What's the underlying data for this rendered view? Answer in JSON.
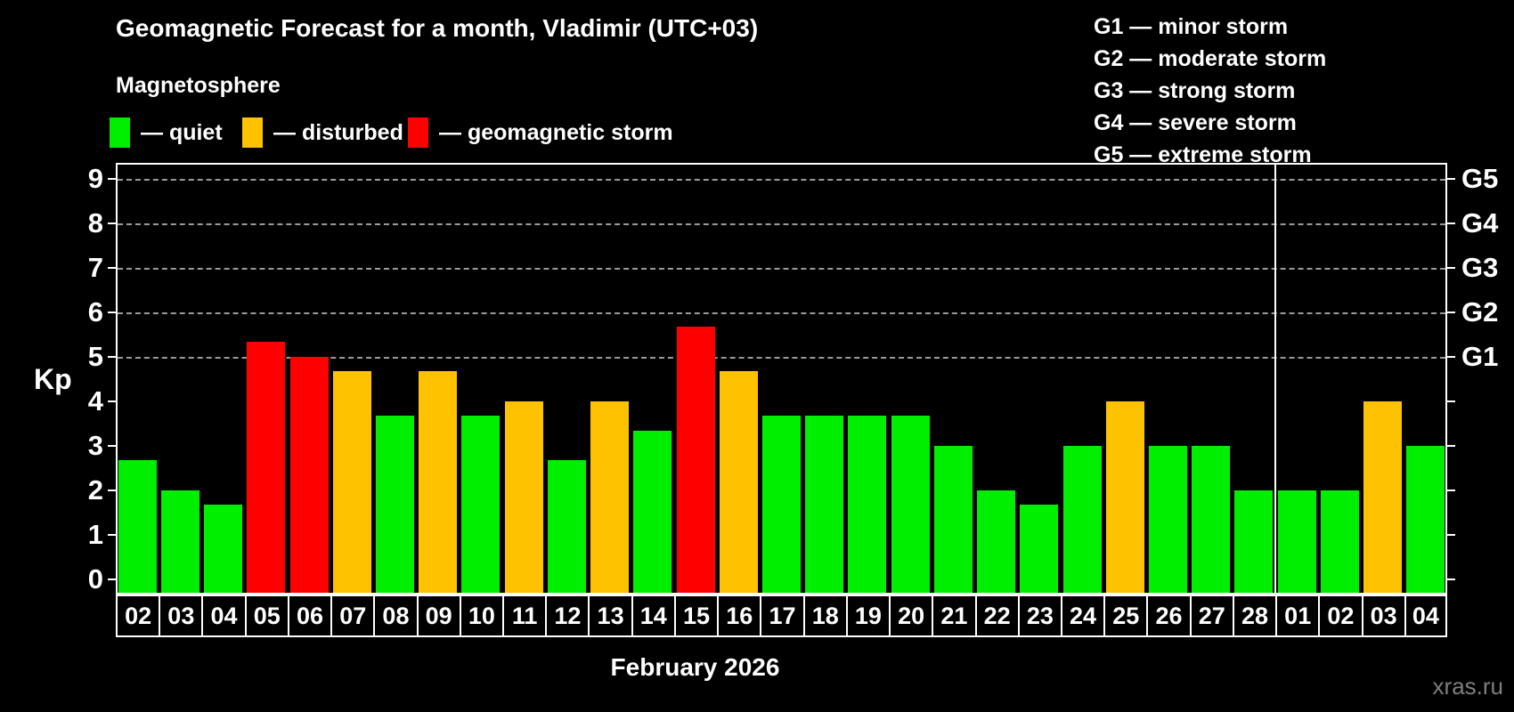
{
  "title": "Geomagnetic Forecast for a month, Vladimir (UTC+03)",
  "subtitle": "Magnetosphere",
  "legend": [
    {
      "state": "quiet",
      "label": "— quiet"
    },
    {
      "state": "disturbed",
      "label": "— disturbed"
    },
    {
      "state": "storm",
      "label": "— geomagnetic storm"
    }
  ],
  "g_levels": [
    {
      "code": "G1",
      "label": "G1 — minor storm"
    },
    {
      "code": "G2",
      "label": "G2 — moderate storm"
    },
    {
      "code": "G3",
      "label": "G3 — strong storm"
    },
    {
      "code": "G4",
      "label": "G4 — severe storm"
    },
    {
      "code": "G5",
      "label": "G5 — extreme storm"
    }
  ],
  "month_label": "February 2026",
  "watermark": "xras.ru",
  "chart_data": {
    "type": "bar",
    "title": "Geomagnetic Forecast for a month, Vladimir (UTC+03)",
    "subtitle": "Magnetosphere",
    "ylabel": "Kp",
    "xlabel": "February 2026",
    "ylim": [
      0,
      9
    ],
    "yticks": [
      0,
      1,
      2,
      3,
      4,
      5,
      6,
      7,
      8,
      9
    ],
    "grid_at_kp": [
      5,
      6,
      7,
      8,
      9
    ],
    "right_axis_labels": [
      {
        "kp": 5,
        "label": "G1"
      },
      {
        "kp": 6,
        "label": "G2"
      },
      {
        "kp": 7,
        "label": "G3"
      },
      {
        "kp": 8,
        "label": "G4"
      },
      {
        "kp": 9,
        "label": "G5"
      }
    ],
    "colors": {
      "quiet": "#00EE00",
      "disturbed": "#FFC200",
      "storm": "#FF0000",
      "grid": "#9A9A9A"
    },
    "legend_position": "top-left",
    "grid": "dashed-horizontal-on-G-levels",
    "month_separator_index": 27,
    "categories": [
      "02",
      "03",
      "04",
      "05",
      "06",
      "07",
      "08",
      "09",
      "10",
      "11",
      "12",
      "13",
      "14",
      "15",
      "16",
      "17",
      "18",
      "19",
      "20",
      "21",
      "22",
      "23",
      "24",
      "25",
      "26",
      "27",
      "28",
      "01",
      "02",
      "03",
      "04"
    ],
    "bars": [
      {
        "day": "02",
        "kp": 2.67,
        "state": "quiet"
      },
      {
        "day": "03",
        "kp": 2.0,
        "state": "quiet"
      },
      {
        "day": "04",
        "kp": 1.67,
        "state": "quiet"
      },
      {
        "day": "05",
        "kp": 5.33,
        "state": "storm"
      },
      {
        "day": "06",
        "kp": 5.0,
        "state": "storm"
      },
      {
        "day": "07",
        "kp": 4.67,
        "state": "disturbed"
      },
      {
        "day": "08",
        "kp": 3.67,
        "state": "quiet"
      },
      {
        "day": "09",
        "kp": 4.67,
        "state": "disturbed"
      },
      {
        "day": "10",
        "kp": 3.67,
        "state": "quiet"
      },
      {
        "day": "11",
        "kp": 4.0,
        "state": "disturbed"
      },
      {
        "day": "12",
        "kp": 2.67,
        "state": "quiet"
      },
      {
        "day": "13",
        "kp": 4.0,
        "state": "disturbed"
      },
      {
        "day": "14",
        "kp": 3.33,
        "state": "quiet"
      },
      {
        "day": "15",
        "kp": 5.67,
        "state": "storm"
      },
      {
        "day": "16",
        "kp": 4.67,
        "state": "disturbed"
      },
      {
        "day": "17",
        "kp": 3.67,
        "state": "quiet"
      },
      {
        "day": "18",
        "kp": 3.67,
        "state": "quiet"
      },
      {
        "day": "19",
        "kp": 3.67,
        "state": "quiet"
      },
      {
        "day": "20",
        "kp": 3.67,
        "state": "quiet"
      },
      {
        "day": "21",
        "kp": 3.0,
        "state": "quiet"
      },
      {
        "day": "22",
        "kp": 2.0,
        "state": "quiet"
      },
      {
        "day": "23",
        "kp": 1.67,
        "state": "quiet"
      },
      {
        "day": "24",
        "kp": 3.0,
        "state": "quiet"
      },
      {
        "day": "25",
        "kp": 4.0,
        "state": "disturbed"
      },
      {
        "day": "26",
        "kp": 3.0,
        "state": "quiet"
      },
      {
        "day": "27",
        "kp": 3.0,
        "state": "quiet"
      },
      {
        "day": "28",
        "kp": 2.0,
        "state": "quiet"
      },
      {
        "day": "01",
        "kp": 2.0,
        "state": "quiet"
      },
      {
        "day": "02",
        "kp": 2.0,
        "state": "quiet"
      },
      {
        "day": "03",
        "kp": 4.0,
        "state": "disturbed"
      },
      {
        "day": "04",
        "kp": 3.0,
        "state": "quiet"
      }
    ]
  }
}
